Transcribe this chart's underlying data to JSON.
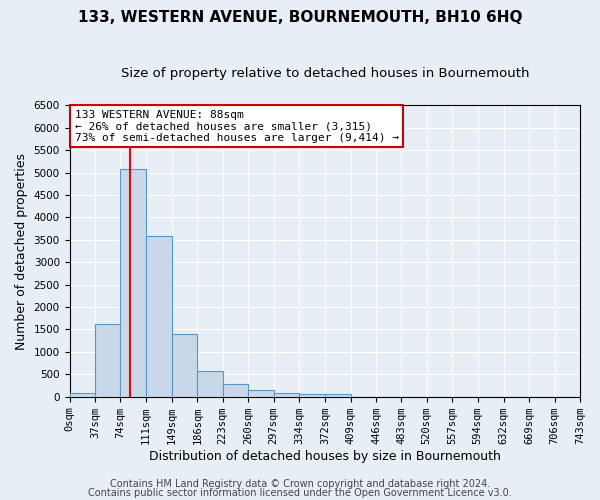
{
  "title": "133, WESTERN AVENUE, BOURNEMOUTH, BH10 6HQ",
  "subtitle": "Size of property relative to detached houses in Bournemouth",
  "xlabel": "Distribution of detached houses by size in Bournemouth",
  "ylabel": "Number of detached properties",
  "bar_color": "#c8d8e8",
  "bar_edge_color": "#5599cc",
  "bar_heights": [
    75,
    1625,
    5075,
    3575,
    1400,
    575,
    280,
    140,
    80,
    55,
    50,
    0,
    0,
    0,
    0,
    0,
    0,
    0,
    0,
    0
  ],
  "bin_edges": [
    0,
    37,
    74,
    111,
    149,
    186,
    223,
    260,
    297,
    334,
    372,
    409,
    446,
    483,
    520,
    557,
    594,
    632,
    669,
    706,
    743
  ],
  "x_tick_labels": [
    "0sqm",
    "37sqm",
    "74sqm",
    "111sqm",
    "149sqm",
    "186sqm",
    "223sqm",
    "260sqm",
    "297sqm",
    "334sqm",
    "372sqm",
    "409sqm",
    "446sqm",
    "483sqm",
    "520sqm",
    "557sqm",
    "594sqm",
    "632sqm",
    "669sqm",
    "706sqm",
    "743sqm"
  ],
  "ylim": [
    0,
    6500
  ],
  "yticks": [
    0,
    500,
    1000,
    1500,
    2000,
    2500,
    3000,
    3500,
    4000,
    4500,
    5000,
    5500,
    6000,
    6500
  ],
  "red_line_x": 88,
  "annotation_line1": "133 WESTERN AVENUE: 88sqm",
  "annotation_line2": "← 26% of detached houses are smaller (3,315)",
  "annotation_line3": "73% of semi-detached houses are larger (9,414) →",
  "annotation_box_color": "#ffffff",
  "annotation_box_edge": "#cc0000",
  "footer_line1": "Contains HM Land Registry data © Crown copyright and database right 2024.",
  "footer_line2": "Contains public sector information licensed under the Open Government Licence v3.0.",
  "background_color": "#e8eef5",
  "plot_background": "#e8eef5",
  "title_fontsize": 11,
  "subtitle_fontsize": 9.5,
  "axis_label_fontsize": 9,
  "tick_fontsize": 7.5,
  "footer_fontsize": 7
}
